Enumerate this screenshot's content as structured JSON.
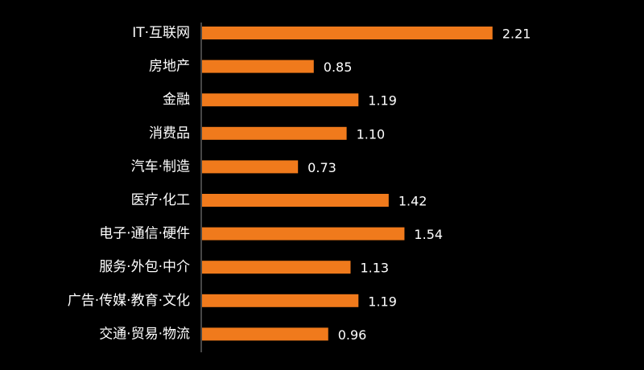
{
  "chart_data": {
    "type": "bar",
    "orientation": "horizontal",
    "categories": [
      "IT·互联网",
      "房地产",
      "金融",
      "消费品",
      "汽车·制造",
      "医疗·化工",
      "电子·通信·硬件",
      "服务·外包·中介",
      "广告·传媒·教育·文化",
      "交通·贸易·物流"
    ],
    "values": [
      2.21,
      0.85,
      1.19,
      1.1,
      0.73,
      1.42,
      1.54,
      1.13,
      1.19,
      0.96
    ],
    "value_labels": [
      "2.21",
      "0.85",
      "1.19",
      "1.10",
      "0.73",
      "1.42",
      "1.54",
      "1.13",
      "1.19",
      "0.96"
    ],
    "title": "",
    "xlabel": "",
    "ylabel": "",
    "xlim": [
      0,
      2.45
    ],
    "grid": false,
    "legend": "none"
  },
  "colors": {
    "background": "#000000",
    "bar": "#f07a1c",
    "text": "#ffffff",
    "axis": "#8c8c8c"
  }
}
